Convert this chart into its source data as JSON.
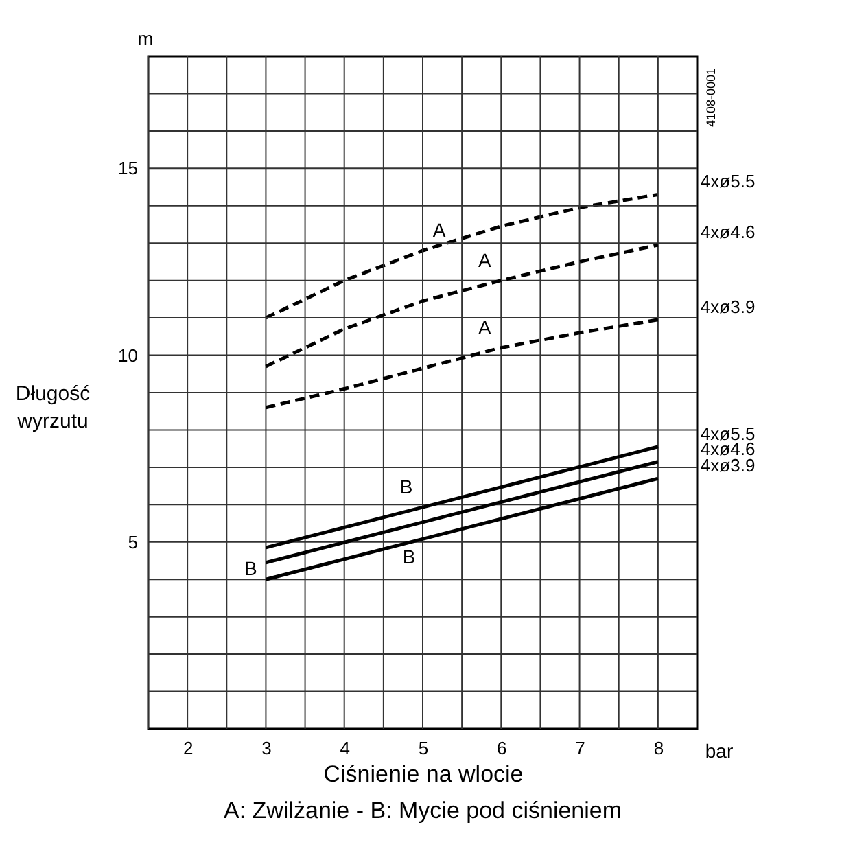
{
  "chart_data": {
    "type": "line",
    "xlabel": "Ciśnienie na wlocie",
    "ylabel": "Długość wyrzutu",
    "xlim": [
      1.5,
      8.5
    ],
    "ylim": [
      0,
      18
    ],
    "xticks": [
      {
        "value": 1.5,
        "label": null
      },
      2,
      {
        "value": 2.5,
        "label": null
      },
      3,
      {
        "value": 3.5,
        "label": null
      },
      4,
      {
        "value": 4.5,
        "label": null
      },
      5,
      {
        "value": 5.5,
        "label": null
      },
      6,
      {
        "value": 6.5,
        "label": null
      },
      7,
      {
        "value": 7.5,
        "label": null
      },
      8
    ],
    "yticks": [
      {
        "value": 1,
        "label": null
      },
      {
        "value": 2,
        "label": null
      },
      {
        "value": 3,
        "label": null
      },
      {
        "value": 4,
        "label": null
      },
      5,
      {
        "value": 6,
        "label": null
      },
      {
        "value": 7,
        "label": null
      },
      {
        "value": 8,
        "label": null
      },
      {
        "value": 9,
        "label": null
      },
      10,
      {
        "value": 11,
        "label": null
      },
      {
        "value": 12,
        "label": null
      },
      {
        "value": 13,
        "label": null
      },
      {
        "value": 14,
        "label": null
      },
      15,
      {
        "value": 16,
        "label": null
      },
      {
        "value": 17,
        "label": null
      }
    ],
    "grid": true,
    "x": [
      3,
      4,
      5,
      6,
      7,
      8
    ],
    "series": [
      {
        "name": "4xø5.5",
        "color": "#000000",
        "line_style": "dashed",
        "values": [
          11.0,
          12.0,
          12.8,
          13.45,
          13.95,
          14.3
        ]
      },
      {
        "name": "4xø4.6",
        "color": "#000000",
        "line_style": "dashed",
        "values": [
          9.7,
          10.7,
          11.45,
          12.0,
          12.5,
          12.95
        ]
      },
      {
        "name": "4xø3.9",
        "color": "#000000",
        "line_style": "dashed",
        "values": [
          8.6,
          9.1,
          9.65,
          10.2,
          10.6,
          10.95
        ]
      },
      {
        "name": "4xø5.5",
        "color": "#000000",
        "line_style": "solid",
        "x": [
          3,
          5,
          8
        ],
        "values": [
          4.85,
          5.93,
          7.55
        ]
      },
      {
        "name": "4xø4.6",
        "color": "#000000",
        "line_style": "solid",
        "x": [
          3,
          5,
          8
        ],
        "values": [
          4.45,
          5.53,
          7.15
        ]
      },
      {
        "name": "4xø3.9",
        "color": "#000000",
        "line_style": "solid",
        "x": [
          3,
          5,
          8
        ],
        "values": [
          4.0,
          5.08,
          6.7
        ]
      }
    ],
    "annotations": [
      {
        "text": "A",
        "x": 5,
        "y": 12.8
      },
      {
        "text": "A",
        "x": 6,
        "y": 12.0
      },
      {
        "text": "A",
        "x": 6,
        "y": 10.2
      },
      {
        "text": "B",
        "x": 5,
        "y": 5.93
      },
      {
        "text": "B",
        "x": 3,
        "y": 4.45
      },
      {
        "text": "B",
        "x": 5,
        "y": 5.08
      },
      "m",
      "bar",
      "4108-0001",
      "A: Zwilżanie - B: Mycie pod ciśnieniem"
    ]
  }
}
